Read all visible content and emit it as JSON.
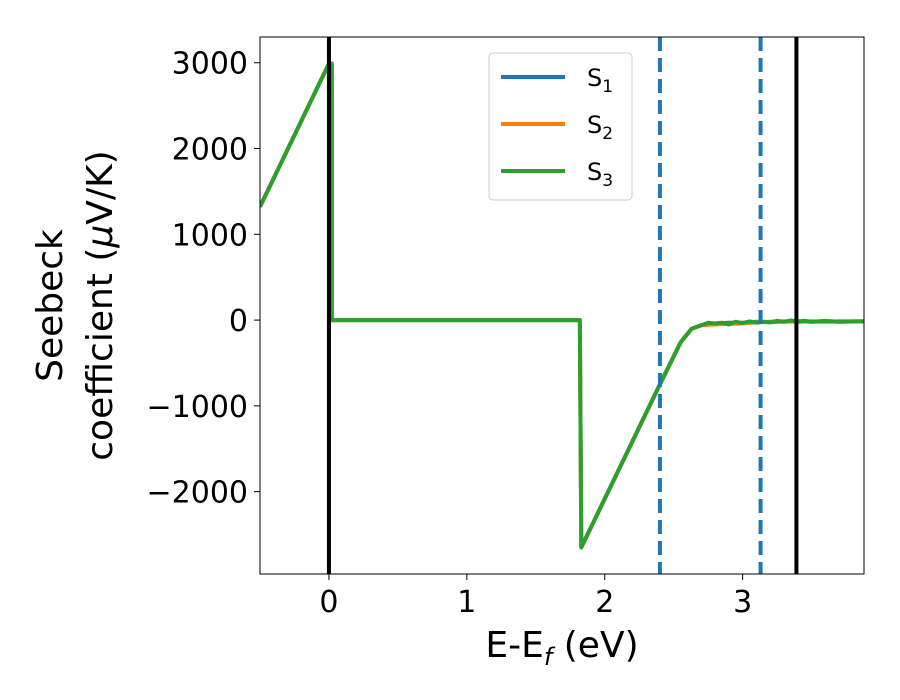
{
  "chart_data": {
    "type": "line",
    "xlabel": "E-E_f (eV)",
    "xlabel_main": "E-E",
    "xlabel_sub": "f",
    "xlabel_tail": " (eV)",
    "ylabel_line1": "Seebeck",
    "ylabel_line2_prefix": "coefficient  (",
    "ylabel_line2_mu": "μ",
    "ylabel_line2_suffix": "V/K)",
    "xlim": [
      -0.5,
      3.88
    ],
    "ylim": [
      -2960,
      3300
    ],
    "x_ticks": [
      0,
      1,
      2,
      3
    ],
    "x_tick_labels": [
      "0",
      "1",
      "2",
      "3"
    ],
    "y_ticks": [
      3000,
      2000,
      1000,
      0,
      -1000,
      -2000
    ],
    "y_tick_labels": [
      "3000",
      "2000",
      "1000",
      "0",
      "−1000",
      "−2000"
    ],
    "grid": false,
    "legend_position": "top-center",
    "vertical_lines": [
      {
        "x": 0.0,
        "style": "solid",
        "color": "#000000"
      },
      {
        "x": 2.4,
        "style": "dashed",
        "color": "#1f77b4"
      },
      {
        "x": 3.13,
        "style": "dashed",
        "color": "#1f77b4"
      },
      {
        "x": 3.39,
        "style": "solid",
        "color": "#000000"
      }
    ],
    "series": [
      {
        "name": "S_1",
        "label_main": "S",
        "label_sub": "1",
        "color": "#1f77b4",
        "x": [
          -0.5,
          0.0,
          0.02,
          0.02,
          1.82,
          1.82,
          1.83,
          2.4,
          2.55,
          2.63,
          2.7,
          2.8,
          2.9,
          3.0,
          3.1,
          3.2,
          3.3,
          3.4,
          3.5,
          3.6,
          3.7,
          3.88
        ],
        "y": [
          1320,
          2990,
          2990,
          0,
          0,
          -80,
          -2650,
          -750,
          -260,
          -100,
          -60,
          -40,
          -30,
          -30,
          -20,
          -25,
          -15,
          -20,
          -15,
          -20,
          -15,
          -15
        ]
      },
      {
        "name": "S_2",
        "label_main": "S",
        "label_sub": "2",
        "color": "#ff7f0e",
        "x": [
          -0.5,
          0.0,
          0.02,
          0.02,
          1.82,
          1.82,
          1.83,
          2.4,
          2.55,
          2.63,
          2.7,
          2.8,
          2.9,
          3.0,
          3.1,
          3.2,
          3.3,
          3.4,
          3.5,
          3.6,
          3.7,
          3.88
        ],
        "y": [
          1320,
          2990,
          2990,
          0,
          0,
          -80,
          -2650,
          -750,
          -260,
          -100,
          -60,
          -50,
          -45,
          -40,
          -25,
          -20,
          -20,
          -15,
          -20,
          -15,
          -20,
          -15
        ]
      },
      {
        "name": "S_3",
        "label_main": "S",
        "label_sub": "3",
        "color": "#2ca02c",
        "x": [
          -0.5,
          0.0,
          0.02,
          0.02,
          1.82,
          1.82,
          1.83,
          2.4,
          2.55,
          2.63,
          2.7,
          2.75,
          2.8,
          2.85,
          2.9,
          2.95,
          3.0,
          3.05,
          3.1,
          3.15,
          3.2,
          3.25,
          3.3,
          3.35,
          3.4,
          3.45,
          3.5,
          3.6,
          3.7,
          3.8,
          3.88
        ],
        "y": [
          1320,
          2990,
          2990,
          0,
          0,
          -80,
          -2650,
          -750,
          -260,
          -100,
          -60,
          -30,
          -40,
          -30,
          -50,
          -20,
          -35,
          -15,
          -30,
          -20,
          -25,
          -10,
          -20,
          -5,
          -15,
          -10,
          -20,
          -10,
          -20,
          -15,
          -15
        ]
      }
    ]
  }
}
